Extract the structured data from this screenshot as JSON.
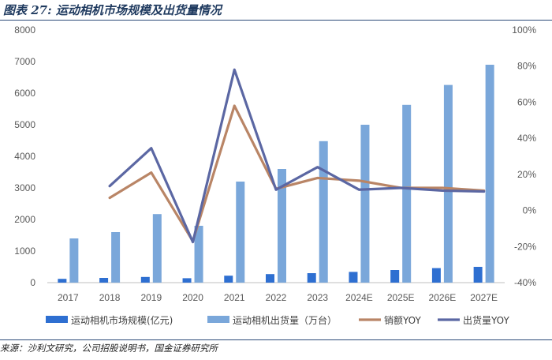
{
  "title": "图表 27: 运动相机市场规模及出货量情况",
  "source": "来源：沙利文研究，公司招股说明书，国金证券研究所",
  "chart_data": {
    "type": "bar",
    "categories": [
      "2017",
      "2018",
      "2019",
      "2020",
      "2021",
      "2022",
      "2023",
      "2024E",
      "2025E",
      "2026E",
      "2027E"
    ],
    "ylim_left": [
      0,
      8000
    ],
    "ylim_right": [
      -0.4,
      1.0
    ],
    "left_ticks": [
      "0",
      "1000",
      "2000",
      "3000",
      "4000",
      "5000",
      "6000",
      "7000",
      "8000"
    ],
    "right_ticks": [
      "-40%",
      "-20%",
      "0%",
      "20%",
      "40%",
      "60%",
      "80%",
      "100%"
    ],
    "grid": false,
    "legend_position": "bottom",
    "series": [
      {
        "name": "运动相机市场规模(亿元)",
        "type": "bar",
        "axis": "left",
        "color": "#2e6fd1",
        "values": [
          120,
          150,
          180,
          140,
          220,
          270,
          300,
          340,
          400,
          460,
          500
        ]
      },
      {
        "name": "运动相机出货量（万台）",
        "type": "bar",
        "axis": "left",
        "color": "#7aa7da",
        "values": [
          1400,
          1600,
          2170,
          1800,
          3200,
          3600,
          4480,
          5000,
          5630,
          6260,
          6900
        ]
      },
      {
        "name": "销额YOY",
        "type": "line",
        "axis": "right",
        "color": "#b98566",
        "values": [
          null,
          0.07,
          0.21,
          -0.17,
          0.58,
          0.12,
          0.18,
          0.165,
          0.125,
          0.125,
          0.11
        ]
      },
      {
        "name": "出货量YOY",
        "type": "line",
        "axis": "right",
        "color": "#5b67a3",
        "values": [
          null,
          0.135,
          0.345,
          -0.175,
          0.78,
          0.115,
          0.24,
          0.115,
          0.125,
          0.11,
          0.105
        ]
      }
    ]
  }
}
